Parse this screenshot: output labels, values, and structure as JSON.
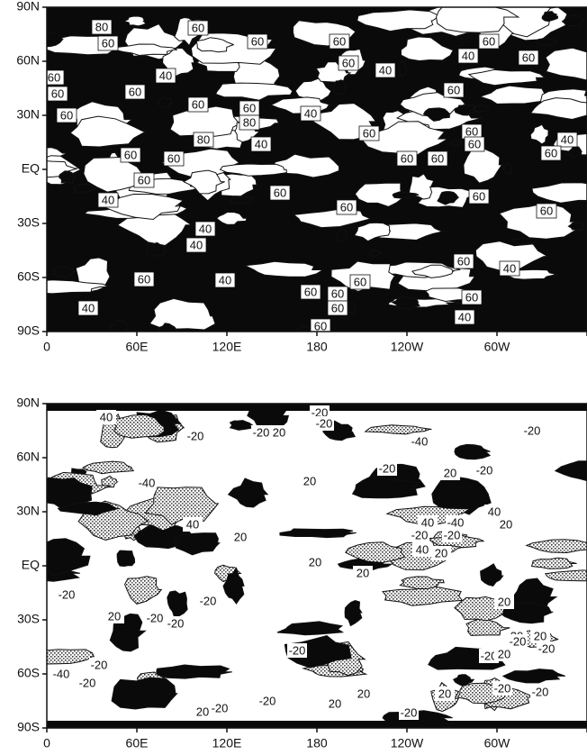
{
  "panels": [
    {
      "lat_labels": [
        "90N",
        "60N",
        "30N",
        "EQ",
        "30S",
        "60S",
        "90S"
      ],
      "lon_labels": [
        "0",
        "60E",
        "120E",
        "180",
        "120W",
        "60W",
        "0"
      ],
      "contour_labels": [
        "80",
        "60",
        "60",
        "60",
        "60",
        "60",
        "40",
        "60",
        "60",
        "40",
        "60",
        "40",
        "60",
        "60",
        "60",
        "60",
        "40",
        "60",
        "60",
        "80",
        "80",
        "60",
        "60",
        "40",
        "40",
        "60",
        "60",
        "60",
        "60",
        "60",
        "60",
        "60",
        "60",
        "60",
        "60",
        "60",
        "40",
        "40",
        "60",
        "40",
        "60",
        "40",
        "60",
        "60",
        "60",
        "60",
        "60",
        "40",
        "40",
        "60",
        "40"
      ]
    },
    {
      "lat_labels": [
        "90N",
        "60N",
        "30N",
        "EQ",
        "30S",
        "60S",
        "90S"
      ],
      "lon_labels": [
        "0",
        "60E",
        "120E",
        "180",
        "120W",
        "60W",
        "0"
      ],
      "contour_labels": [
        "40",
        "-20",
        "-20",
        "-20",
        "-20",
        "20",
        "-20",
        "-40",
        "-20",
        "20",
        "-20",
        "-40",
        "20",
        "40",
        "20",
        "40",
        "-40",
        "40",
        "20",
        "-20",
        "-20",
        "40",
        "20",
        "20",
        "20",
        "-20",
        "-20",
        "20",
        "20",
        "-20",
        "20",
        "20",
        "-20",
        "-20",
        "-20",
        "20",
        "-20",
        "-20",
        "-20",
        "-40",
        "-20",
        "-20",
        "20",
        "20",
        "-20",
        "-20",
        "20",
        "-20",
        "-20",
        "20"
      ]
    }
  ]
}
